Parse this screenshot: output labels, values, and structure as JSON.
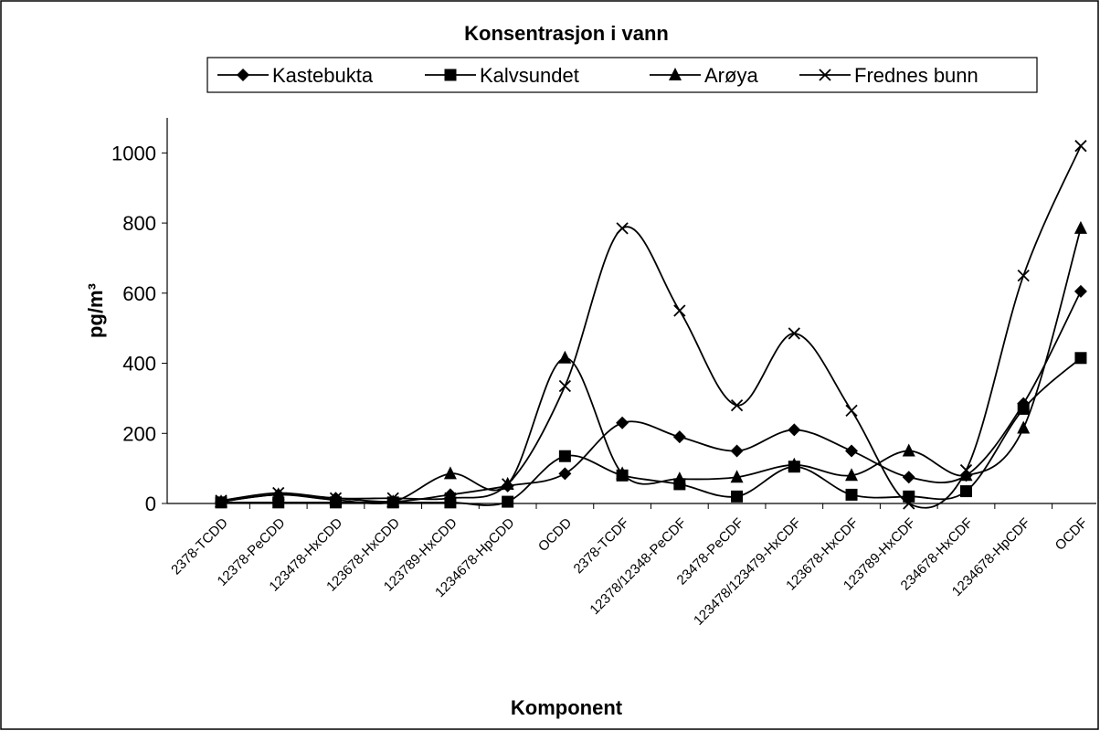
{
  "chart_data": {
    "type": "line",
    "title": "Konsentrasjon i vann",
    "x_label": "Komponent",
    "y_label": "pg/m³",
    "categories": [
      "2378-TCDD",
      "12378-PeCDD",
      "123478-HxCDD",
      "123678-HxCDD",
      "123789-HxCDD",
      "1234678-HpCDD",
      "OCDD",
      "2378-TCDF",
      "12378/12348-PeCDF",
      "23478-PeCDF",
      "123478/123479-HxCDF",
      "123678-HxCDF",
      "123789-HxCDF",
      "234678-HxCDF",
      "1234678-HpCDF",
      "OCDF"
    ],
    "series": [
      {
        "name": "Kastebukta",
        "color": "#000000",
        "marker": "diamond",
        "values": [
          5,
          25,
          15,
          5,
          25,
          50,
          85,
          230,
          190,
          150,
          210,
          150,
          75,
          80,
          285,
          605
        ]
      },
      {
        "name": "Kalvsundet",
        "color": "#000000",
        "marker": "square",
        "values": [
          3,
          3,
          3,
          3,
          3,
          5,
          135,
          80,
          55,
          20,
          105,
          25,
          20,
          35,
          270,
          415
        ]
      },
      {
        "name": "Arøya",
        "color": "#000000",
        "marker": "triangle",
        "values": [
          5,
          25,
          10,
          5,
          85,
          55,
          415,
          85,
          70,
          75,
          110,
          80,
          150,
          80,
          215,
          785
        ]
      },
      {
        "name": "Frednes bunn",
        "color": "#000000",
        "marker": "x",
        "values": [
          8,
          30,
          15,
          15,
          15,
          55,
          335,
          785,
          550,
          280,
          485,
          265,
          0,
          95,
          650,
          1020
        ]
      }
    ],
    "ylim": [
      0,
      1100
    ],
    "yticks": [
      0,
      200,
      400,
      600,
      800,
      1000
    ],
    "smooth": true
  }
}
